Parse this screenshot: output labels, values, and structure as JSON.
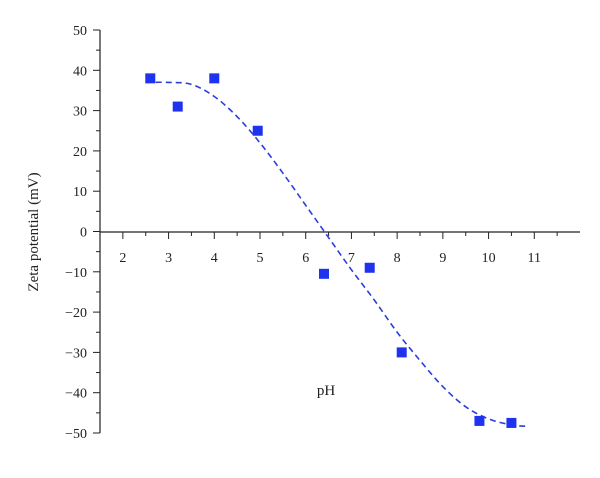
{
  "chart_data": {
    "type": "scatter",
    "xlabel": "pH",
    "ylabel": "Zeta potential (mV)",
    "xlim": [
      1.5,
      12.0
    ],
    "ylim": [
      -50,
      50
    ],
    "x_ticks": [
      2,
      3,
      4,
      5,
      6,
      7,
      8,
      9,
      10,
      11
    ],
    "y_ticks": [
      -50,
      -40,
      -30,
      -20,
      -10,
      0,
      10,
      20,
      30,
      40,
      50
    ],
    "grid": false,
    "legend": "none",
    "series": [
      {
        "kind": "markers",
        "marker": "square",
        "color": "#1e32f0",
        "points": [
          {
            "x": 2.6,
            "y": 38.0
          },
          {
            "x": 3.2,
            "y": 31.0
          },
          {
            "x": 4.0,
            "y": 38.0
          },
          {
            "x": 4.95,
            "y": 25.0
          },
          {
            "x": 6.4,
            "y": -10.5
          },
          {
            "x": 7.4,
            "y": -9.0
          },
          {
            "x": 8.1,
            "y": -30.0
          },
          {
            "x": 9.8,
            "y": -47.0
          },
          {
            "x": 10.5,
            "y": -47.5
          }
        ]
      },
      {
        "kind": "fit-line",
        "style": "dashed",
        "color": "#2a3fd8",
        "points": [
          {
            "x": 2.5,
            "y": 37.0
          },
          {
            "x": 3.0,
            "y": 37.0
          },
          {
            "x": 3.5,
            "y": 36.5
          },
          {
            "x": 4.0,
            "y": 33.5
          },
          {
            "x": 4.5,
            "y": 28.5
          },
          {
            "x": 5.0,
            "y": 22.0
          },
          {
            "x": 5.5,
            "y": 14.5
          },
          {
            "x": 6.0,
            "y": 6.5
          },
          {
            "x": 6.5,
            "y": -1.5
          },
          {
            "x": 7.0,
            "y": -9.5
          },
          {
            "x": 7.5,
            "y": -17.0
          },
          {
            "x": 8.0,
            "y": -25.0
          },
          {
            "x": 8.5,
            "y": -32.0
          },
          {
            "x": 9.0,
            "y": -38.5
          },
          {
            "x": 9.5,
            "y": -43.5
          },
          {
            "x": 10.0,
            "y": -46.5
          },
          {
            "x": 10.5,
            "y": -48.0
          },
          {
            "x": 10.8,
            "y": -48.3
          }
        ]
      }
    ]
  }
}
